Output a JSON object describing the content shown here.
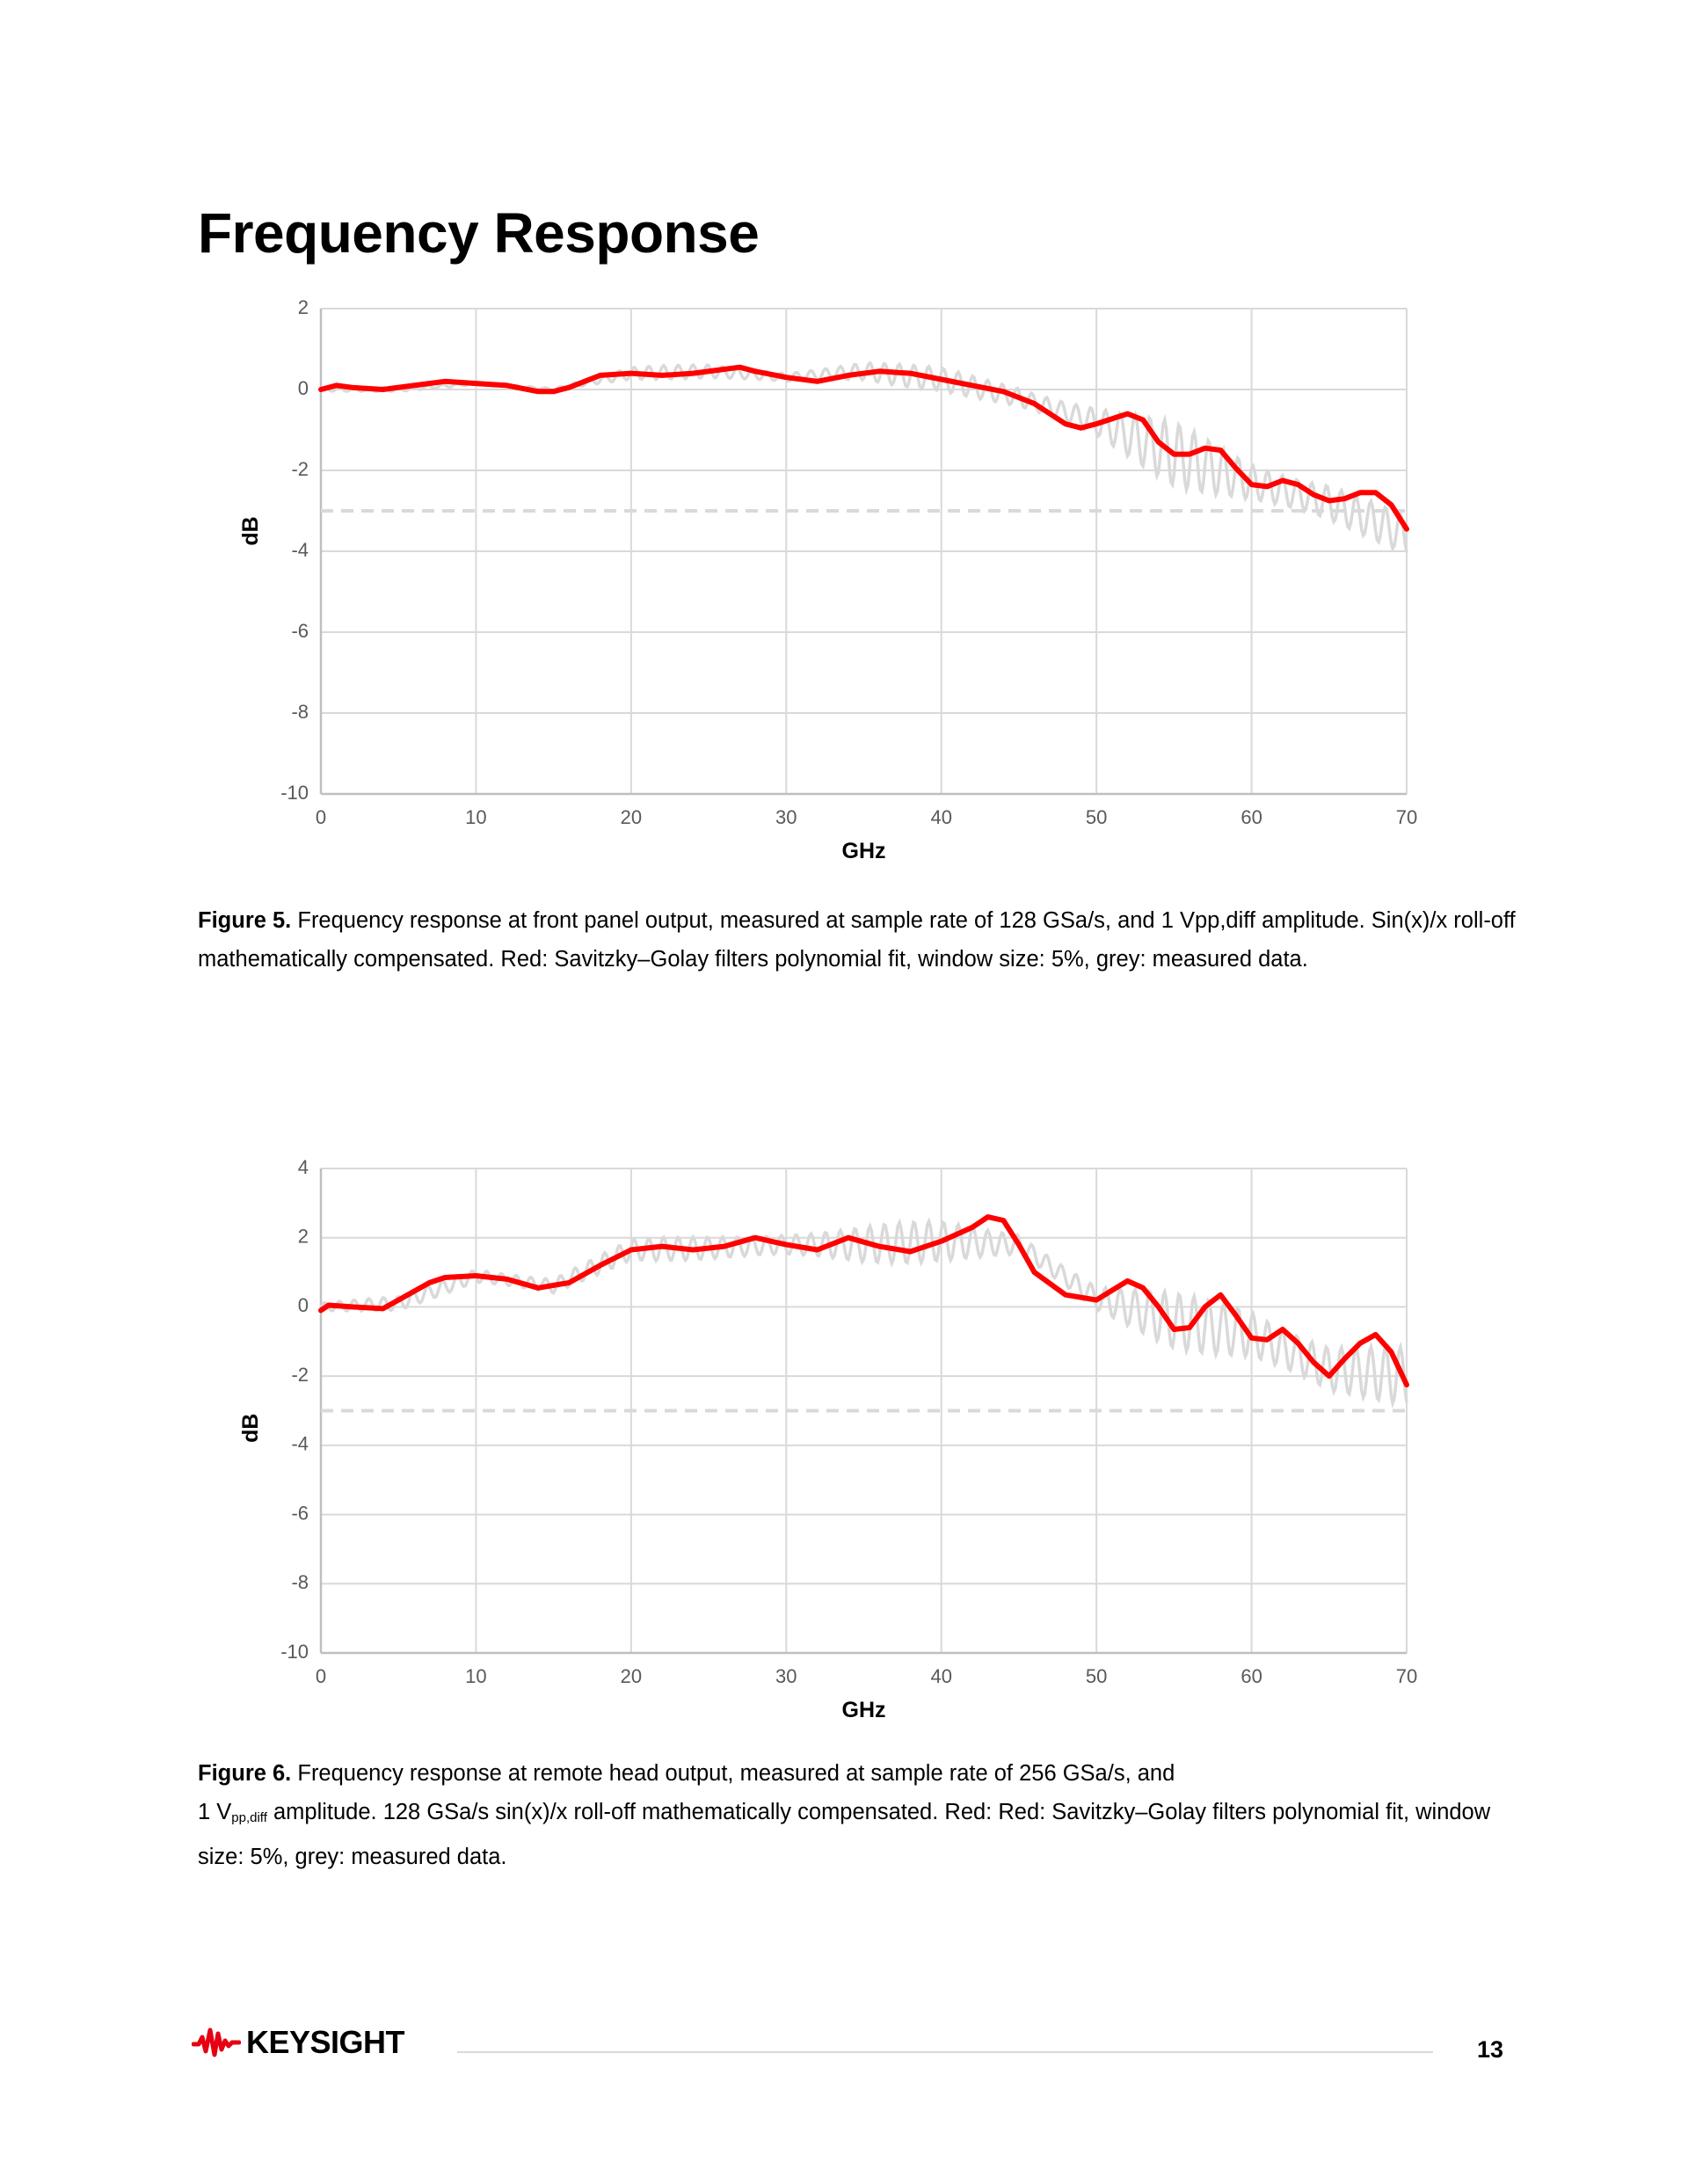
{
  "page": {
    "title": "Frequency Response",
    "page_number": "13",
    "logo_text": "KEYSIGHT",
    "colors": {
      "fit": "#ff0000",
      "measured": "#d9d9d9",
      "grid": "#d9d9d9",
      "reference": "#d9d9d9",
      "logo_red": "#e60012"
    }
  },
  "captions": [
    {
      "label": "Figure 5.",
      "text": " Frequency response at front panel output, measured at sample rate of 128 GSa/s, and 1 Vpp,diff amplitude. Sin(x)/x roll-off mathematically compensated. Red: Savitzky–Golay filters polynomial fit, window size: 5%, grey: measured data."
    },
    {
      "label": "Figure 6.",
      "line1": " Frequency response at remote head output, measured at sample rate of 256 GSa/s, and",
      "pre_sub": "1 V",
      "sub": "pp,diff",
      "post_sub": " amplitude. 128 GSa/s sin(x)/x roll-off mathematically compensated. Red: Red: Savitzky–Golay filters polynomial fit, window size: 5%, grey: measured data."
    }
  ],
  "chart_data": [
    {
      "type": "line",
      "title": "",
      "xlabel": "GHz",
      "ylabel": "dB",
      "xlim": [
        0,
        70
      ],
      "ylim": [
        -10,
        2
      ],
      "xticks": [
        0,
        10,
        20,
        30,
        40,
        50,
        60,
        70
      ],
      "yticks": [
        2,
        0,
        -2,
        -4,
        -6,
        -8,
        -10
      ],
      "grid": true,
      "legend": "none",
      "reference_line": {
        "y": -3,
        "style": "dashed",
        "label": ""
      },
      "series": [
        {
          "name": "Savitzky–Golay fit (red)",
          "x": [
            0,
            1,
            2,
            4,
            6,
            8,
            10,
            12,
            14,
            15,
            16,
            18,
            20,
            22,
            24,
            26,
            27,
            28,
            30,
            32,
            34,
            36,
            38,
            40,
            42,
            44,
            46,
            48,
            49,
            50,
            52,
            53,
            54,
            55,
            56,
            57,
            58,
            59,
            60,
            61,
            62,
            63,
            64,
            65,
            66,
            67,
            68,
            69,
            70
          ],
          "y": [
            0.0,
            0.1,
            0.05,
            0.0,
            0.1,
            0.2,
            0.15,
            0.1,
            -0.05,
            -0.05,
            0.05,
            0.35,
            0.4,
            0.35,
            0.4,
            0.5,
            0.55,
            0.45,
            0.3,
            0.2,
            0.35,
            0.45,
            0.4,
            0.25,
            0.1,
            -0.05,
            -0.35,
            -0.85,
            -0.95,
            -0.85,
            -0.6,
            -0.75,
            -1.3,
            -1.6,
            -1.6,
            -1.45,
            -1.5,
            -1.95,
            -2.35,
            -2.4,
            -2.25,
            -2.35,
            -2.6,
            -2.75,
            -2.7,
            -2.55,
            -2.55,
            -2.85,
            -3.45
          ]
        },
        {
          "name": "Measured data (grey)",
          "x": [
            0,
            5,
            10,
            15,
            20,
            25,
            30,
            35,
            40,
            45,
            50,
            55,
            60,
            65,
            70
          ],
          "y": [
            0.0,
            0.0,
            0.15,
            0.0,
            0.4,
            0.45,
            0.3,
            0.45,
            0.25,
            -0.2,
            -0.8,
            -1.6,
            -2.3,
            -2.8,
            -3.6
          ],
          "ripple_db": [
            0.05,
            0.05,
            0.05,
            0.05,
            0.15,
            0.2,
            0.2,
            0.25,
            0.3,
            0.4,
            0.5,
            0.8,
            0.6,
            0.8,
            0.5
          ]
        }
      ]
    },
    {
      "type": "line",
      "title": "",
      "xlabel": "GHz",
      "ylabel": "dB",
      "xlim": [
        0,
        70
      ],
      "ylim": [
        -10,
        4
      ],
      "xticks": [
        0,
        10,
        20,
        30,
        40,
        50,
        60,
        70
      ],
      "yticks": [
        4,
        2,
        0,
        -2,
        -4,
        -6,
        -8,
        -10
      ],
      "grid": true,
      "legend": "none",
      "reference_line": {
        "y": -3,
        "style": "dashed",
        "label": ""
      },
      "series": [
        {
          "name": "Savitzky–Golay fit (red)",
          "x": [
            0,
            0.5,
            2,
            4,
            5,
            7,
            8,
            10,
            12,
            14,
            16,
            18,
            20,
            22,
            24,
            26,
            28,
            30,
            32,
            34,
            36,
            38,
            40,
            42,
            43,
            44,
            45,
            46,
            48,
            50,
            52,
            53,
            54,
            55,
            56,
            57,
            58,
            59,
            60,
            61,
            62,
            63,
            64,
            65,
            66,
            67,
            68,
            69,
            70
          ],
          "y": [
            -0.1,
            0.05,
            0.0,
            -0.05,
            0.2,
            0.7,
            0.85,
            0.9,
            0.8,
            0.55,
            0.7,
            1.2,
            1.65,
            1.75,
            1.65,
            1.75,
            2.0,
            1.8,
            1.65,
            2.0,
            1.75,
            1.6,
            1.9,
            2.3,
            2.6,
            2.5,
            1.8,
            1.0,
            0.35,
            0.2,
            0.75,
            0.55,
            0.0,
            -0.65,
            -0.6,
            0.0,
            0.35,
            -0.25,
            -0.9,
            -0.95,
            -0.65,
            -1.05,
            -1.6,
            -2.0,
            -1.5,
            -1.05,
            -0.8,
            -1.3,
            -2.25
          ]
        },
        {
          "name": "Measured data (grey)",
          "x": [
            0,
            5,
            10,
            15,
            20,
            25,
            30,
            35,
            40,
            45,
            50,
            55,
            60,
            65,
            70
          ],
          "y": [
            0.0,
            0.1,
            0.9,
            0.6,
            1.65,
            1.7,
            1.8,
            1.8,
            1.9,
            1.8,
            0.25,
            -0.4,
            -0.8,
            -1.8,
            -2.0
          ],
          "ripple_db": [
            0.15,
            0.2,
            0.3,
            0.35,
            0.3,
            0.4,
            0.55,
            0.6,
            0.6,
            0.5,
            0.5,
            0.8,
            0.9,
            1.2,
            0.9
          ]
        }
      ]
    }
  ]
}
